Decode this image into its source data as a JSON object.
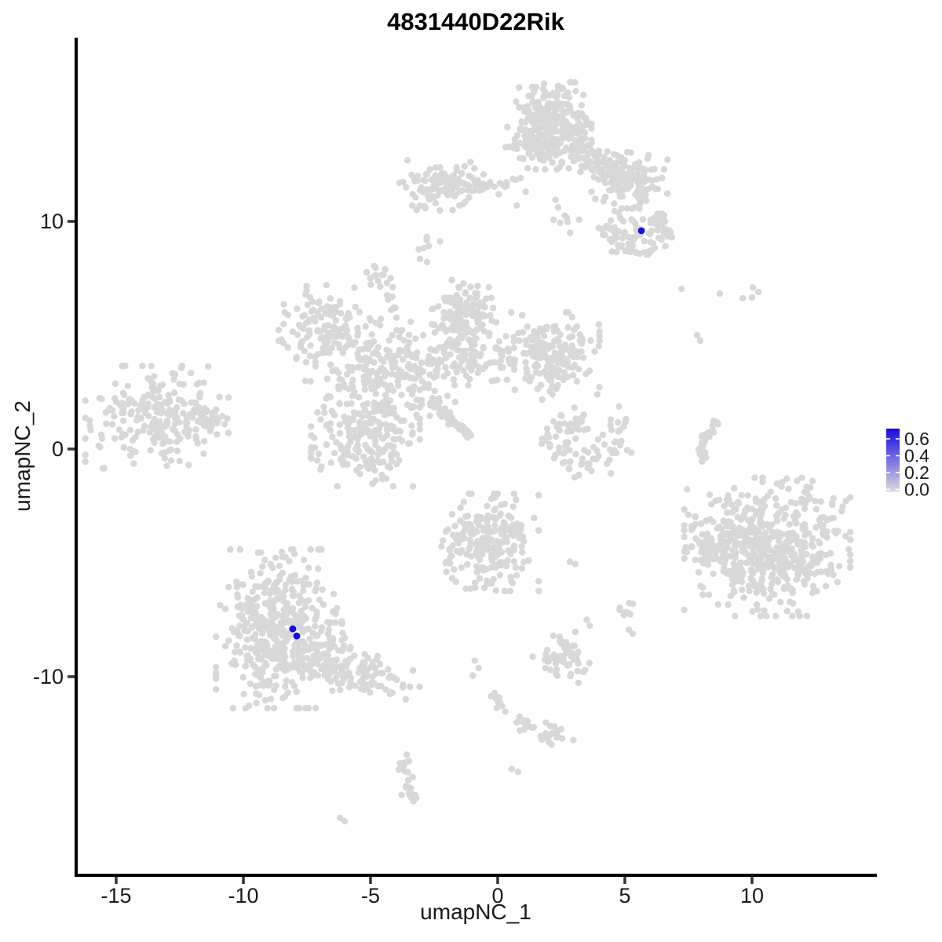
{
  "chart_data": {
    "type": "scatter",
    "title": "4831440D22Rik",
    "xlabel": "umapNC_1",
    "ylabel": "umapNC_2",
    "xlim": [
      -16.6,
      14.9
    ],
    "ylim": [
      -18.7,
      18.1
    ],
    "grid": false,
    "x_axis": {
      "ticks": [
        {
          "value": -15,
          "label": "-15"
        },
        {
          "value": -10,
          "label": "-10"
        },
        {
          "value": -5,
          "label": "-5"
        },
        {
          "value": 0,
          "label": "0"
        },
        {
          "value": 5,
          "label": "5"
        },
        {
          "value": 10,
          "label": "10"
        }
      ]
    },
    "y_axis": {
      "ticks": [
        {
          "value": 10,
          "label": "10"
        },
        {
          "value": 0,
          "label": "0"
        },
        {
          "value": -10,
          "label": "-10"
        }
      ]
    },
    "legend": {
      "position": "right",
      "low_color": "#D8D6DC",
      "high_color": "#1A0DE8",
      "max_value": 0.72,
      "ticks": [
        {
          "value": 0.6,
          "label": "0.6"
        },
        {
          "value": 0.4,
          "label": "0.4"
        },
        {
          "value": 0.2,
          "label": "0.2"
        },
        {
          "value": 0.0,
          "label": "0.0"
        }
      ]
    },
    "colors": {
      "point": "#D8D8D8",
      "highlight": "#1A0DE8",
      "axis": "#000000",
      "text": "#1A1A1A"
    },
    "highlighted_cells": [
      {
        "x": 5.65,
        "y": 9.59,
        "value": 0.65
      },
      {
        "x": -8.06,
        "y": -7.9,
        "value": 0.62
      },
      {
        "x": -7.9,
        "y": -8.21,
        "value": 0.6
      }
    ],
    "clusters": [
      {
        "name": "top-stem",
        "kind": "gauss",
        "cx": 2.0,
        "cy": 14.2,
        "sx": 0.75,
        "sy": 0.85,
        "n": 300
      },
      {
        "name": "stem-wing-band",
        "kind": "strip",
        "x1": 2.9,
        "y1": 13.1,
        "x2": 4.7,
        "y2": 12.1,
        "jitter": 0.35,
        "n": 80
      },
      {
        "name": "right-wing",
        "kind": "gauss",
        "cx": 5.1,
        "cy": 11.8,
        "sx": 0.7,
        "sy": 0.55,
        "n": 140
      },
      {
        "name": "left-arm",
        "kind": "gauss",
        "cx": -2.2,
        "cy": 11.6,
        "sx": 0.75,
        "sy": 0.5,
        "n": 110
      },
      {
        "name": "arm-chain",
        "kind": "strip",
        "x1": -1.2,
        "y1": 11.5,
        "x2": 0.7,
        "y2": 11.6,
        "jitter": 0.18,
        "n": 22
      },
      {
        "name": "stem-south-dots",
        "kind": "dots",
        "pts": [
          [
            0.9,
            11.9
          ],
          [
            1.1,
            11.3
          ],
          [
            0.75,
            10.7
          ],
          [
            -3.6,
            11.5
          ],
          [
            -3.35,
            11.2
          ]
        ]
      },
      {
        "name": "hook-ring",
        "kind": "arc",
        "cx": 5.45,
        "cy": 9.55,
        "rx": 1.05,
        "ry": 0.8,
        "a1": 120,
        "a2": 420,
        "jitter": 0.22,
        "n": 85
      },
      {
        "name": "hook-fill",
        "kind": "gauss",
        "cx": 5.45,
        "cy": 9.8,
        "sx": 0.5,
        "sy": 0.4,
        "n": 20
      },
      {
        "name": "below-wing-dots",
        "kind": "strip",
        "x1": 2.3,
        "y1": 10.9,
        "x2": 2.9,
        "y2": 9.9,
        "jitter": 0.3,
        "n": 9
      },
      {
        "name": "small-blob-north",
        "kind": "gauss",
        "cx": -2.8,
        "cy": 9.0,
        "sx": 0.3,
        "sy": 0.35,
        "n": 9
      },
      {
        "name": "central-top-blob",
        "kind": "gauss",
        "cx": -4.55,
        "cy": 7.5,
        "sx": 0.3,
        "sy": 0.35,
        "n": 15
      },
      {
        "name": "central-top-chain",
        "kind": "strip",
        "x1": -4.3,
        "y1": 6.9,
        "x2": -4.0,
        "y2": 5.7,
        "jitter": 0.12,
        "n": 8
      },
      {
        "name": "central-upperleft",
        "kind": "gauss",
        "cx": -6.7,
        "cy": 5.4,
        "sx": 0.85,
        "sy": 0.8,
        "n": 120
      },
      {
        "name": "central-mass",
        "kind": "gauss",
        "cx": -4.3,
        "cy": 3.3,
        "sx": 1.45,
        "sy": 1.1,
        "n": 260
      },
      {
        "name": "central-vband",
        "kind": "gauss",
        "cx": -1.35,
        "cy": 5.4,
        "sx": 0.55,
        "sy": 0.9,
        "n": 95
      },
      {
        "name": "central-vband-top",
        "kind": "gauss",
        "cx": -1.3,
        "cy": 6.3,
        "sx": 0.55,
        "sy": 0.5,
        "n": 55
      },
      {
        "name": "central-right-band",
        "kind": "strip",
        "x1": -2.2,
        "y1": 3.8,
        "x2": 0.9,
        "y2": 4.1,
        "jitter": 0.45,
        "n": 80
      },
      {
        "name": "central-right-blob",
        "kind": "gauss",
        "cx": 2.2,
        "cy": 4.2,
        "sx": 0.8,
        "sy": 0.8,
        "n": 170
      },
      {
        "name": "diag-tail",
        "kind": "strip",
        "x1": -2.6,
        "y1": 2.1,
        "x2": -1.1,
        "y2": 0.6,
        "jitter": 0.08,
        "n": 55
      },
      {
        "name": "central-lowerleft",
        "kind": "gauss",
        "cx": -5.2,
        "cy": 0.5,
        "sx": 0.95,
        "sy": 0.95,
        "n": 190
      },
      {
        "name": "left-island",
        "kind": "gauss",
        "cx": -13.4,
        "cy": 1.4,
        "sx": 1.25,
        "sy": 1.0,
        "n": 230
      },
      {
        "name": "left-island-tip",
        "kind": "strip",
        "x1": -11.7,
        "y1": 1.5,
        "x2": -10.9,
        "y2": 1.3,
        "jitter": 0.3,
        "n": 25
      },
      {
        "name": "crescent",
        "kind": "arc",
        "cx": 3.4,
        "cy": 0.6,
        "rx": 1.3,
        "ry": 1.3,
        "a1": 160,
        "a2": 395,
        "jitter": 0.28,
        "n": 70
      },
      {
        "name": "crescent-fill",
        "kind": "gauss",
        "cx": 3.1,
        "cy": 1.1,
        "sx": 0.6,
        "sy": 0.55,
        "n": 28
      },
      {
        "name": "right-thin-arc",
        "kind": "strip",
        "x1": 8.66,
        "y1": 1.35,
        "x2": 8.05,
        "y2": 0.3,
        "jitter": 0.1,
        "n": 18
      },
      {
        "name": "right-thin-arc-2",
        "kind": "strip",
        "x1": 8.05,
        "y1": 0.3,
        "x2": 8.12,
        "y2": -0.5,
        "jitter": 0.1,
        "n": 14
      },
      {
        "name": "ne-dots",
        "kind": "dots",
        "pts": [
          [
            7.22,
            7.03
          ],
          [
            8.73,
            6.83
          ],
          [
            9.63,
            6.62
          ],
          [
            10.03,
            7.1
          ],
          [
            10.25,
            6.9
          ],
          [
            10.0,
            6.66
          ],
          [
            7.84,
            5.0
          ],
          [
            7.96,
            4.76
          ]
        ]
      },
      {
        "name": "right-big",
        "kind": "gauss",
        "cx": 10.6,
        "cy": -4.3,
        "sx": 1.45,
        "sy": 1.35,
        "n": 560
      },
      {
        "name": "right-big-appendix",
        "kind": "gauss",
        "cx": 8.35,
        "cy": -4.4,
        "sx": 0.38,
        "sy": 0.5,
        "n": 35
      },
      {
        "name": "center-bottom",
        "kind": "gauss",
        "cx": -0.3,
        "cy": -4.1,
        "sx": 0.85,
        "sy": 0.95,
        "n": 220
      },
      {
        "name": "pair-mid",
        "kind": "dots",
        "pts": [
          [
            2.84,
            -4.95
          ],
          [
            3.05,
            -5.05
          ]
        ]
      },
      {
        "name": "small-south-blob",
        "kind": "gauss",
        "cx": 5.15,
        "cy": -7.35,
        "sx": 0.25,
        "sy": 0.42,
        "n": 10
      },
      {
        "name": "tiny-south",
        "kind": "dots",
        "pts": [
          [
            3.5,
            -7.5
          ],
          [
            3.62,
            -7.75
          ]
        ]
      },
      {
        "name": "south-cluster",
        "kind": "gauss",
        "cx": 2.55,
        "cy": -9.15,
        "sx": 0.55,
        "sy": 0.5,
        "n": 55
      },
      {
        "name": "south-west-dots",
        "kind": "dots",
        "pts": [
          [
            -0.9,
            -9.3
          ],
          [
            -0.75,
            -9.62
          ],
          [
            -0.98,
            -9.95
          ]
        ]
      },
      {
        "name": "diag-chain-south",
        "kind": "strip",
        "x1": -0.55,
        "y1": -10.4,
        "x2": 1.3,
        "y2": -12.2,
        "jitter": 0.18,
        "n": 22
      },
      {
        "name": "south-blob-c",
        "kind": "gauss",
        "cx": 2.3,
        "cy": -12.7,
        "sx": 0.4,
        "sy": 0.3,
        "n": 20
      },
      {
        "name": "tiny-dot-s",
        "kind": "dots",
        "pts": [
          [
            0.55,
            -14.05
          ],
          [
            0.8,
            -14.18
          ]
        ]
      },
      {
        "name": "bottomleft-main",
        "kind": "gauss",
        "cx": -8.6,
        "cy": -7.9,
        "sx": 1.1,
        "sy": 1.55,
        "n": 470
      },
      {
        "name": "bottomleft-tail",
        "kind": "strip",
        "x1": -7.3,
        "y1": -9.0,
        "x2": -4.0,
        "y2": -10.4,
        "jitter": 0.5,
        "n": 140
      },
      {
        "name": "s-chain-bottom",
        "kind": "strip",
        "x1": -3.75,
        "y1": -13.6,
        "x2": -3.3,
        "y2": -15.5,
        "jitter": 0.15,
        "n": 24
      },
      {
        "name": "sw-oval",
        "kind": "dots",
        "pts": [
          [
            -6.2,
            -16.2
          ],
          [
            -6.02,
            -16.35
          ]
        ]
      }
    ]
  }
}
